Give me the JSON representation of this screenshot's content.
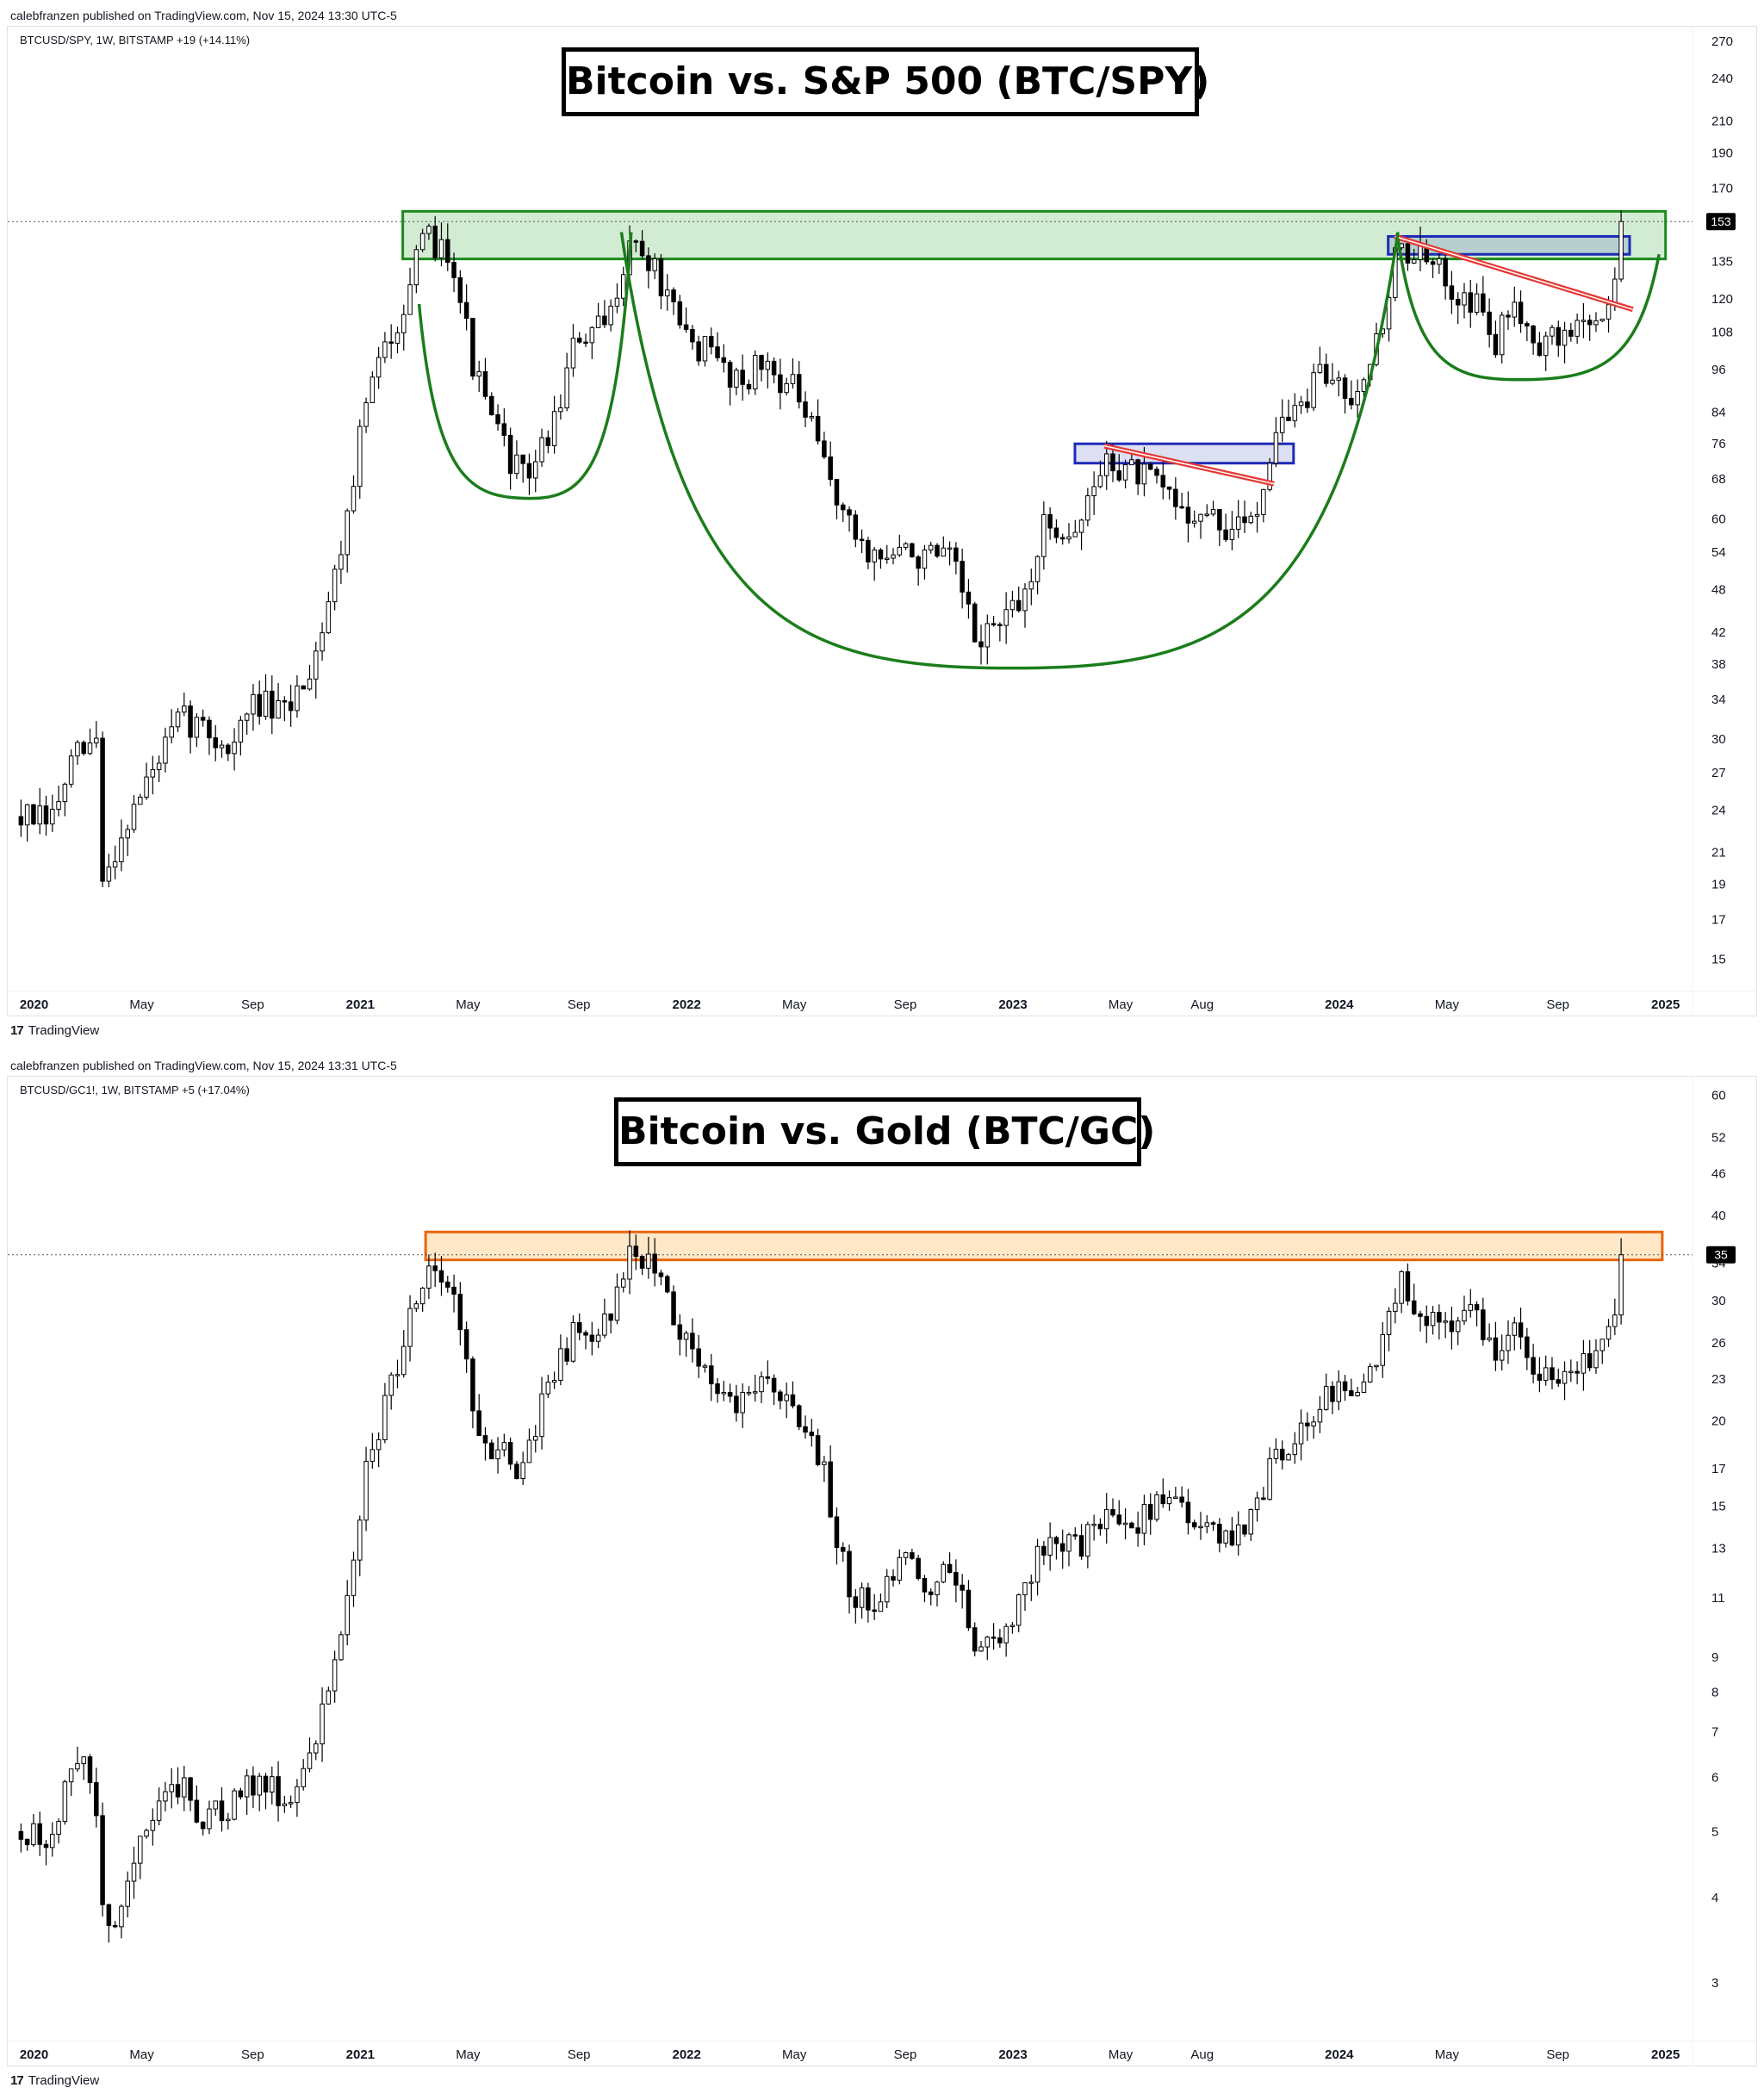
{
  "panels": [
    {
      "publisher": "calebfranzen published on TradingView.com, Nov 15, 2024 13:30 UTC-5",
      "symbol_line": "BTCUSD/SPY, 1W, BITSTAMP  +19 (+14.11%)",
      "title": "Bitcoin vs. S&P 500 (BTC/SPY)",
      "logo": "TradingView",
      "chart_data": {
        "type": "candlestick",
        "title": "Bitcoin vs. S&P 500 (BTC/SPY)",
        "scale": "log",
        "ylim": [
          14,
          275
        ],
        "y_ticks": [
          270,
          240,
          210,
          190,
          170,
          135,
          120,
          108,
          96,
          84,
          76,
          68,
          60,
          54,
          48,
          42,
          38,
          34,
          30,
          27,
          24,
          21,
          19,
          17,
          15
        ],
        "x_ticks": [
          {
            "label": "2020",
            "t": 2020.0,
            "bold": true
          },
          {
            "label": "May",
            "t": 2020.33
          },
          {
            "label": "Sep",
            "t": 2020.67
          },
          {
            "label": "2021",
            "t": 2021.0,
            "bold": true
          },
          {
            "label": "May",
            "t": 2021.33
          },
          {
            "label": "Sep",
            "t": 2021.67
          },
          {
            "label": "2022",
            "t": 2022.0,
            "bold": true
          },
          {
            "label": "May",
            "t": 2022.33
          },
          {
            "label": "Sep",
            "t": 2022.67
          },
          {
            "label": "2023",
            "t": 2023.0,
            "bold": true
          },
          {
            "label": "May",
            "t": 2023.33
          },
          {
            "label": "Aug",
            "t": 2023.58
          },
          {
            "label": "2024",
            "t": 2024.0,
            "bold": true
          },
          {
            "label": "May",
            "t": 2024.33
          },
          {
            "label": "Sep",
            "t": 2024.67
          },
          {
            "label": "2025",
            "t": 2025.0,
            "bold": true
          }
        ],
        "xlim": [
          2019.93,
          2025.08
        ],
        "last_price": 153,
        "last_label": "153",
        "anchors": [
          [
            2019.96,
            23.5
          ],
          [
            2020.05,
            23
          ],
          [
            2020.12,
            28
          ],
          [
            2020.2,
            30
          ],
          [
            2020.21,
            19
          ],
          [
            2020.28,
            23
          ],
          [
            2020.38,
            28
          ],
          [
            2020.45,
            32
          ],
          [
            2020.52,
            31
          ],
          [
            2020.6,
            29
          ],
          [
            2020.68,
            34
          ],
          [
            2020.76,
            32
          ],
          [
            2020.85,
            38
          ],
          [
            2020.93,
            52
          ],
          [
            2021.02,
            88
          ],
          [
            2021.12,
            115
          ],
          [
            2021.2,
            145
          ],
          [
            2021.28,
            140
          ],
          [
            2021.35,
            95
          ],
          [
            2021.42,
            78
          ],
          [
            2021.5,
            68
          ],
          [
            2021.58,
            78
          ],
          [
            2021.66,
            105
          ],
          [
            2021.76,
            110
          ],
          [
            2021.82,
            145
          ],
          [
            2021.9,
            132
          ],
          [
            2021.98,
            108
          ],
          [
            2022.08,
            100
          ],
          [
            2022.16,
            93
          ],
          [
            2022.24,
            98
          ],
          [
            2022.33,
            90
          ],
          [
            2022.42,
            72
          ],
          [
            2022.5,
            58
          ],
          [
            2022.58,
            53
          ],
          [
            2022.66,
            54
          ],
          [
            2022.74,
            53
          ],
          [
            2022.82,
            52
          ],
          [
            2022.88,
            41
          ],
          [
            2022.95,
            43
          ],
          [
            2023.02,
            45
          ],
          [
            2023.1,
            59
          ],
          [
            2023.2,
            58
          ],
          [
            2023.28,
            72
          ],
          [
            2023.36,
            70
          ],
          [
            2023.45,
            66
          ],
          [
            2023.52,
            62
          ],
          [
            2023.6,
            60
          ],
          [
            2023.68,
            57
          ],
          [
            2023.76,
            64
          ],
          [
            2023.8,
            80
          ],
          [
            2023.88,
            85
          ],
          [
            2023.95,
            95
          ],
          [
            2024.04,
            90
          ],
          [
            2024.12,
            105
          ],
          [
            2024.18,
            142
          ],
          [
            2024.26,
            135
          ],
          [
            2024.34,
            126
          ],
          [
            2024.42,
            118
          ],
          [
            2024.48,
            104
          ],
          [
            2024.54,
            120
          ],
          [
            2024.62,
            103
          ],
          [
            2024.7,
            108
          ],
          [
            2024.76,
            112
          ],
          [
            2024.82,
            115
          ],
          [
            2024.85,
            135
          ],
          [
            2024.87,
            153
          ]
        ],
        "zones": [
          {
            "t0": 2021.13,
            "t1": 2025.0,
            "y0": 136,
            "y1": 158,
            "color": "#1b8a1b",
            "fill": "rgba(76,175,80,0.25)"
          },
          {
            "t0": 2023.19,
            "t1": 2023.86,
            "y0": 71.5,
            "y1": 76,
            "color": "#1f2bb8",
            "fill": "rgba(63,81,181,0.18)"
          },
          {
            "t0": 2024.15,
            "t1": 2024.89,
            "y0": 138,
            "y1": 146,
            "color": "#1f2bb8",
            "fill": "rgba(63,81,181,0.18)"
          }
        ],
        "trendlines": [
          {
            "t0": 2023.28,
            "y0": 75.5,
            "t1": 2023.8,
            "y1": 67,
            "color": "#e53935"
          },
          {
            "t0": 2024.17,
            "y0": 146,
            "t1": 2024.9,
            "y1": 116,
            "color": "#e53935"
          }
        ],
        "arcs": [
          {
            "t0": 2021.18,
            "y0": 118,
            "tv": 2021.52,
            "yv": 64,
            "t1": 2021.83,
            "y1": 148,
            "color": "#1b7d1b"
          },
          {
            "t0": 2021.8,
            "y0": 148,
            "tv": 2023.0,
            "yv": 37.5,
            "t1": 2024.18,
            "y1": 148,
            "color": "#1b7d1b"
          },
          {
            "t0": 2024.18,
            "y0": 145,
            "tv": 2024.55,
            "yv": 93,
            "t1": 2024.98,
            "y1": 138,
            "color": "#1b7d1b"
          }
        ],
        "seed": 7
      }
    },
    {
      "publisher": "calebfranzen published on TradingView.com, Nov 15, 2024 13:31 UTC-5",
      "symbol_line": "BTCUSD/GC1!, 1W, BITSTAMP  +5 (+17.04%)",
      "title": "Bitcoin vs. Gold (BTC/GC)",
      "logo": "TradingView",
      "chart_data": {
        "type": "candlestick",
        "title": "Bitcoin vs. Gold (BTC/GC)",
        "scale": "log",
        "ylim": [
          2.55,
          62
        ],
        "y_ticks": [
          60,
          52,
          46,
          40,
          34,
          30,
          26,
          23,
          20,
          17,
          15,
          13,
          11,
          9,
          8,
          7,
          6,
          5,
          4,
          3
        ],
        "x_ticks": [
          {
            "label": "2020",
            "t": 2020.0,
            "bold": true
          },
          {
            "label": "May",
            "t": 2020.33
          },
          {
            "label": "Sep",
            "t": 2020.67
          },
          {
            "label": "2021",
            "t": 2021.0,
            "bold": true
          },
          {
            "label": "May",
            "t": 2021.33
          },
          {
            "label": "Sep",
            "t": 2021.67
          },
          {
            "label": "2022",
            "t": 2022.0,
            "bold": true
          },
          {
            "label": "May",
            "t": 2022.33
          },
          {
            "label": "Sep",
            "t": 2022.67
          },
          {
            "label": "2023",
            "t": 2023.0,
            "bold": true
          },
          {
            "label": "May",
            "t": 2023.33
          },
          {
            "label": "Aug",
            "t": 2023.58
          },
          {
            "label": "2024",
            "t": 2024.0,
            "bold": true
          },
          {
            "label": "May",
            "t": 2024.33
          },
          {
            "label": "Sep",
            "t": 2024.67
          },
          {
            "label": "2025",
            "t": 2025.0,
            "bold": true
          }
        ],
        "xlim": [
          2019.93,
          2025.08
        ],
        "last_price": 35,
        "last_label": "35",
        "anchors": [
          [
            2019.96,
            5.0
          ],
          [
            2020.05,
            4.8
          ],
          [
            2020.12,
            6.3
          ],
          [
            2020.18,
            6.0
          ],
          [
            2020.22,
            3.4
          ],
          [
            2020.3,
            4.5
          ],
          [
            2020.38,
            5.4
          ],
          [
            2020.45,
            5.8
          ],
          [
            2020.52,
            5.2
          ],
          [
            2020.6,
            5.4
          ],
          [
            2020.68,
            6.0
          ],
          [
            2020.76,
            5.6
          ],
          [
            2020.85,
            6.3
          ],
          [
            2020.93,
            9.5
          ],
          [
            2021.02,
            17
          ],
          [
            2021.12,
            25
          ],
          [
            2021.2,
            34
          ],
          [
            2021.28,
            32
          ],
          [
            2021.35,
            20
          ],
          [
            2021.42,
            18
          ],
          [
            2021.5,
            17
          ],
          [
            2021.58,
            23
          ],
          [
            2021.66,
            27
          ],
          [
            2021.76,
            28
          ],
          [
            2021.82,
            35
          ],
          [
            2021.9,
            34
          ],
          [
            2021.98,
            27
          ],
          [
            2022.08,
            23
          ],
          [
            2022.16,
            21
          ],
          [
            2022.24,
            24
          ],
          [
            2022.33,
            20
          ],
          [
            2022.42,
            17
          ],
          [
            2022.5,
            11
          ],
          [
            2022.58,
            10.8
          ],
          [
            2022.66,
            12.5
          ],
          [
            2022.74,
            11.5
          ],
          [
            2022.82,
            12
          ],
          [
            2022.88,
            9.5
          ],
          [
            2022.95,
            9.3
          ],
          [
            2023.02,
            11
          ],
          [
            2023.1,
            13.5
          ],
          [
            2023.2,
            13
          ],
          [
            2023.28,
            14.5
          ],
          [
            2023.36,
            14
          ],
          [
            2023.45,
            15.5
          ],
          [
            2023.52,
            14.5
          ],
          [
            2023.6,
            13.5
          ],
          [
            2023.68,
            13.5
          ],
          [
            2023.76,
            15.5
          ],
          [
            2023.8,
            18
          ],
          [
            2023.88,
            19
          ],
          [
            2023.95,
            21.5
          ],
          [
            2024.04,
            22
          ],
          [
            2024.12,
            24
          ],
          [
            2024.18,
            32
          ],
          [
            2024.26,
            29
          ],
          [
            2024.34,
            27
          ],
          [
            2024.42,
            29
          ],
          [
            2024.48,
            24
          ],
          [
            2024.54,
            28
          ],
          [
            2024.62,
            23
          ],
          [
            2024.7,
            23.5
          ],
          [
            2024.76,
            24
          ],
          [
            2024.82,
            25.5
          ],
          [
            2024.85,
            31
          ],
          [
            2024.87,
            35
          ]
        ],
        "zones": [
          {
            "t0": 2021.2,
            "t1": 2024.99,
            "y0": 34.4,
            "y1": 37.8,
            "color": "#e8650f",
            "fill": "rgba(255,152,0,0.22)"
          }
        ],
        "trendlines": [],
        "arcs": [],
        "seed": 13
      }
    }
  ]
}
